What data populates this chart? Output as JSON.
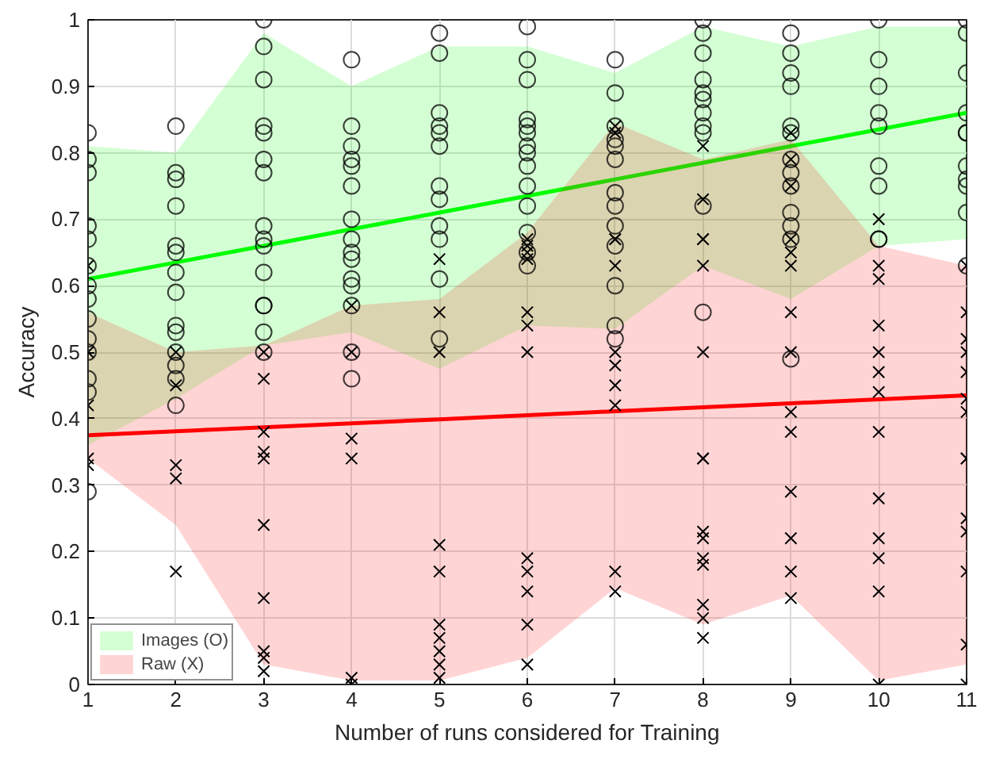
{
  "chart_data": {
    "type": "scatter",
    "xlabel": "Number of runs considered for Training",
    "ylabel": "Accuracy",
    "xlim": [
      1,
      11
    ],
    "ylim": [
      0,
      1
    ],
    "xticks": [
      1,
      2,
      3,
      4,
      5,
      6,
      7,
      8,
      9,
      10,
      11
    ],
    "yticks": [
      0,
      0.1,
      0.2,
      0.3,
      0.4,
      0.5,
      0.6,
      0.7,
      0.8,
      0.9,
      1
    ],
    "grid": true,
    "legend": "bottom left",
    "series": [
      {
        "name": "Images (O)",
        "type": "line",
        "color": "#00ff00",
        "line_style": "solid",
        "marker": "none",
        "x": [
          1,
          2,
          3,
          4,
          5,
          6,
          7,
          8,
          9,
          10,
          11
        ],
        "values": [
          0.61,
          0.635,
          0.66,
          0.685,
          0.71,
          0.735,
          0.76,
          0.785,
          0.81,
          0.835,
          0.86
        ],
        "lower": [
          0.36,
          0.43,
          0.51,
          0.53,
          0.475,
          0.54,
          0.535,
          0.63,
          0.58,
          0.66,
          0.67
        ],
        "upper": [
          0.81,
          0.8,
          0.98,
          0.9,
          0.96,
          0.96,
          0.92,
          0.99,
          0.96,
          0.99,
          0.99
        ]
      },
      {
        "name": "Raw (X)",
        "type": "line",
        "color": "#ff0000",
        "line_style": "solid",
        "marker": "none",
        "x": [
          1,
          2,
          3,
          4,
          5,
          6,
          7,
          8,
          9,
          10,
          11
        ],
        "values": [
          0.375,
          0.381,
          0.387,
          0.393,
          0.399,
          0.405,
          0.411,
          0.417,
          0.423,
          0.429,
          0.435
        ],
        "lower": [
          0.34,
          0.24,
          0.03,
          0.006,
          0.006,
          0.04,
          0.145,
          0.09,
          0.134,
          0.006,
          0.03
        ],
        "upper": [
          0.56,
          0.5,
          0.51,
          0.57,
          0.58,
          0.68,
          0.845,
          0.79,
          0.82,
          0.66,
          0.63
        ]
      },
      {
        "marker": "circle",
        "color": "#000000",
        "x": [
          1,
          1,
          1,
          1,
          1,
          1,
          1,
          1,
          1,
          1,
          1,
          1,
          1,
          1,
          2,
          2,
          2,
          2,
          2,
          2,
          2,
          2,
          2,
          2,
          2,
          2,
          2,
          2,
          3,
          3,
          3,
          3,
          3,
          3,
          3,
          3,
          3,
          3,
          3,
          3,
          3,
          3,
          3,
          4,
          4,
          4,
          4,
          4,
          4,
          4,
          4,
          4,
          4,
          4,
          4,
          4,
          4,
          4,
          5,
          5,
          5,
          5,
          5,
          5,
          5,
          5,
          5,
          5,
          5,
          5,
          6,
          6,
          6,
          6,
          6,
          6,
          6,
          6,
          6,
          6,
          6,
          6,
          6,
          6,
          7,
          7,
          7,
          7,
          7,
          7,
          7,
          7,
          7,
          7,
          7,
          7,
          7,
          8,
          8,
          8,
          8,
          8,
          8,
          8,
          8,
          8,
          8,
          8,
          9,
          9,
          9,
          9,
          9,
          9,
          9,
          9,
          9,
          9,
          9,
          9,
          9,
          10,
          10,
          10,
          10,
          10,
          10,
          10,
          10,
          10,
          11,
          11,
          11,
          11,
          11,
          11,
          11,
          11,
          11,
          11,
          11
        ],
        "values": [
          0.83,
          0.79,
          0.77,
          0.69,
          0.67,
          0.63,
          0.6,
          0.58,
          0.55,
          0.52,
          0.5,
          0.46,
          0.44,
          0.29,
          0.84,
          0.77,
          0.76,
          0.72,
          0.66,
          0.65,
          0.62,
          0.59,
          0.54,
          0.53,
          0.5,
          0.48,
          0.46,
          0.42,
          1.0,
          0.96,
          0.91,
          0.84,
          0.83,
          0.79,
          0.77,
          0.69,
          0.67,
          0.66,
          0.62,
          0.57,
          0.57,
          0.53,
          0.5,
          0.94,
          0.84,
          0.81,
          0.79,
          0.78,
          0.75,
          0.7,
          0.67,
          0.65,
          0.64,
          0.61,
          0.6,
          0.57,
          0.5,
          0.46,
          0.98,
          0.95,
          0.86,
          0.84,
          0.83,
          0.81,
          0.75,
          0.73,
          0.69,
          0.67,
          0.61,
          0.52,
          0.99,
          0.94,
          0.91,
          0.85,
          0.84,
          0.83,
          0.81,
          0.8,
          0.78,
          0.75,
          0.72,
          0.68,
          0.65,
          0.63,
          0.94,
          0.89,
          0.84,
          0.82,
          0.81,
          0.79,
          0.74,
          0.72,
          0.69,
          0.66,
          0.6,
          0.54,
          0.52,
          1.0,
          0.98,
          0.95,
          0.91,
          0.89,
          0.88,
          0.86,
          0.84,
          0.83,
          0.72,
          0.56,
          0.98,
          0.95,
          0.92,
          0.9,
          0.84,
          0.83,
          0.79,
          0.77,
          0.75,
          0.71,
          0.69,
          0.67,
          0.49,
          1.0,
          0.94,
          0.9,
          0.86,
          0.84,
          0.78,
          0.75,
          0.67,
          0.67,
          1.0,
          0.98,
          0.92,
          0.86,
          0.83,
          0.83,
          0.78,
          0.76,
          0.75,
          0.71,
          0.63
        ]
      },
      {
        "marker": "cross",
        "color": "#000000",
        "x": [
          1,
          1,
          1,
          1,
          1,
          2,
          2,
          2,
          2,
          2,
          3,
          3,
          3,
          3,
          3,
          3,
          3,
          3,
          3,
          3,
          4,
          4,
          4,
          4,
          4,
          4,
          5,
          5,
          5,
          5,
          5,
          5,
          5,
          5,
          5,
          5,
          6,
          6,
          6,
          6,
          6,
          6,
          6,
          6,
          6,
          6,
          6,
          6,
          7,
          7,
          7,
          7,
          7,
          7,
          7,
          7,
          7,
          7,
          7,
          8,
          8,
          8,
          8,
          8,
          8,
          8,
          8,
          8,
          8,
          8,
          8,
          8,
          8,
          8,
          9,
          9,
          9,
          9,
          9,
          9,
          9,
          9,
          9,
          9,
          9,
          9,
          9,
          9,
          10,
          10,
          10,
          10,
          10,
          10,
          10,
          10,
          10,
          10,
          10,
          10,
          10,
          11,
          11,
          11,
          11,
          11,
          11,
          11,
          11,
          11,
          11,
          11,
          11,
          11,
          11
        ],
        "values": [
          0.63,
          0.5,
          0.42,
          0.34,
          0.33,
          0.5,
          0.45,
          0.33,
          0.31,
          0.17,
          0.5,
          0.46,
          0.38,
          0.35,
          0.34,
          0.24,
          0.13,
          0.05,
          0.04,
          0.02,
          0.57,
          0.5,
          0.37,
          0.34,
          0.01,
          0.0,
          0.64,
          0.56,
          0.5,
          0.21,
          0.17,
          0.09,
          0.07,
          0.05,
          0.03,
          0.01,
          0.67,
          0.66,
          0.65,
          0.64,
          0.56,
          0.54,
          0.5,
          0.19,
          0.17,
          0.14,
          0.09,
          0.03,
          0.84,
          0.83,
          0.67,
          0.67,
          0.63,
          0.5,
          0.48,
          0.45,
          0.42,
          0.17,
          0.14,
          0.81,
          0.73,
          0.67,
          0.67,
          0.63,
          0.5,
          0.34,
          0.34,
          0.23,
          0.22,
          0.19,
          0.18,
          0.12,
          0.1,
          0.07,
          0.83,
          0.79,
          0.75,
          0.67,
          0.65,
          0.63,
          0.56,
          0.5,
          0.41,
          0.38,
          0.29,
          0.22,
          0.17,
          0.13,
          0.7,
          0.63,
          0.61,
          0.54,
          0.5,
          0.47,
          0.44,
          0.38,
          0.28,
          0.22,
          0.19,
          0.14,
          0.0,
          0.63,
          0.56,
          0.52,
          0.5,
          0.47,
          0.43,
          0.41,
          0.34,
          0.34,
          0.25,
          0.23,
          0.17,
          0.06,
          0.0
        ]
      }
    ]
  }
}
